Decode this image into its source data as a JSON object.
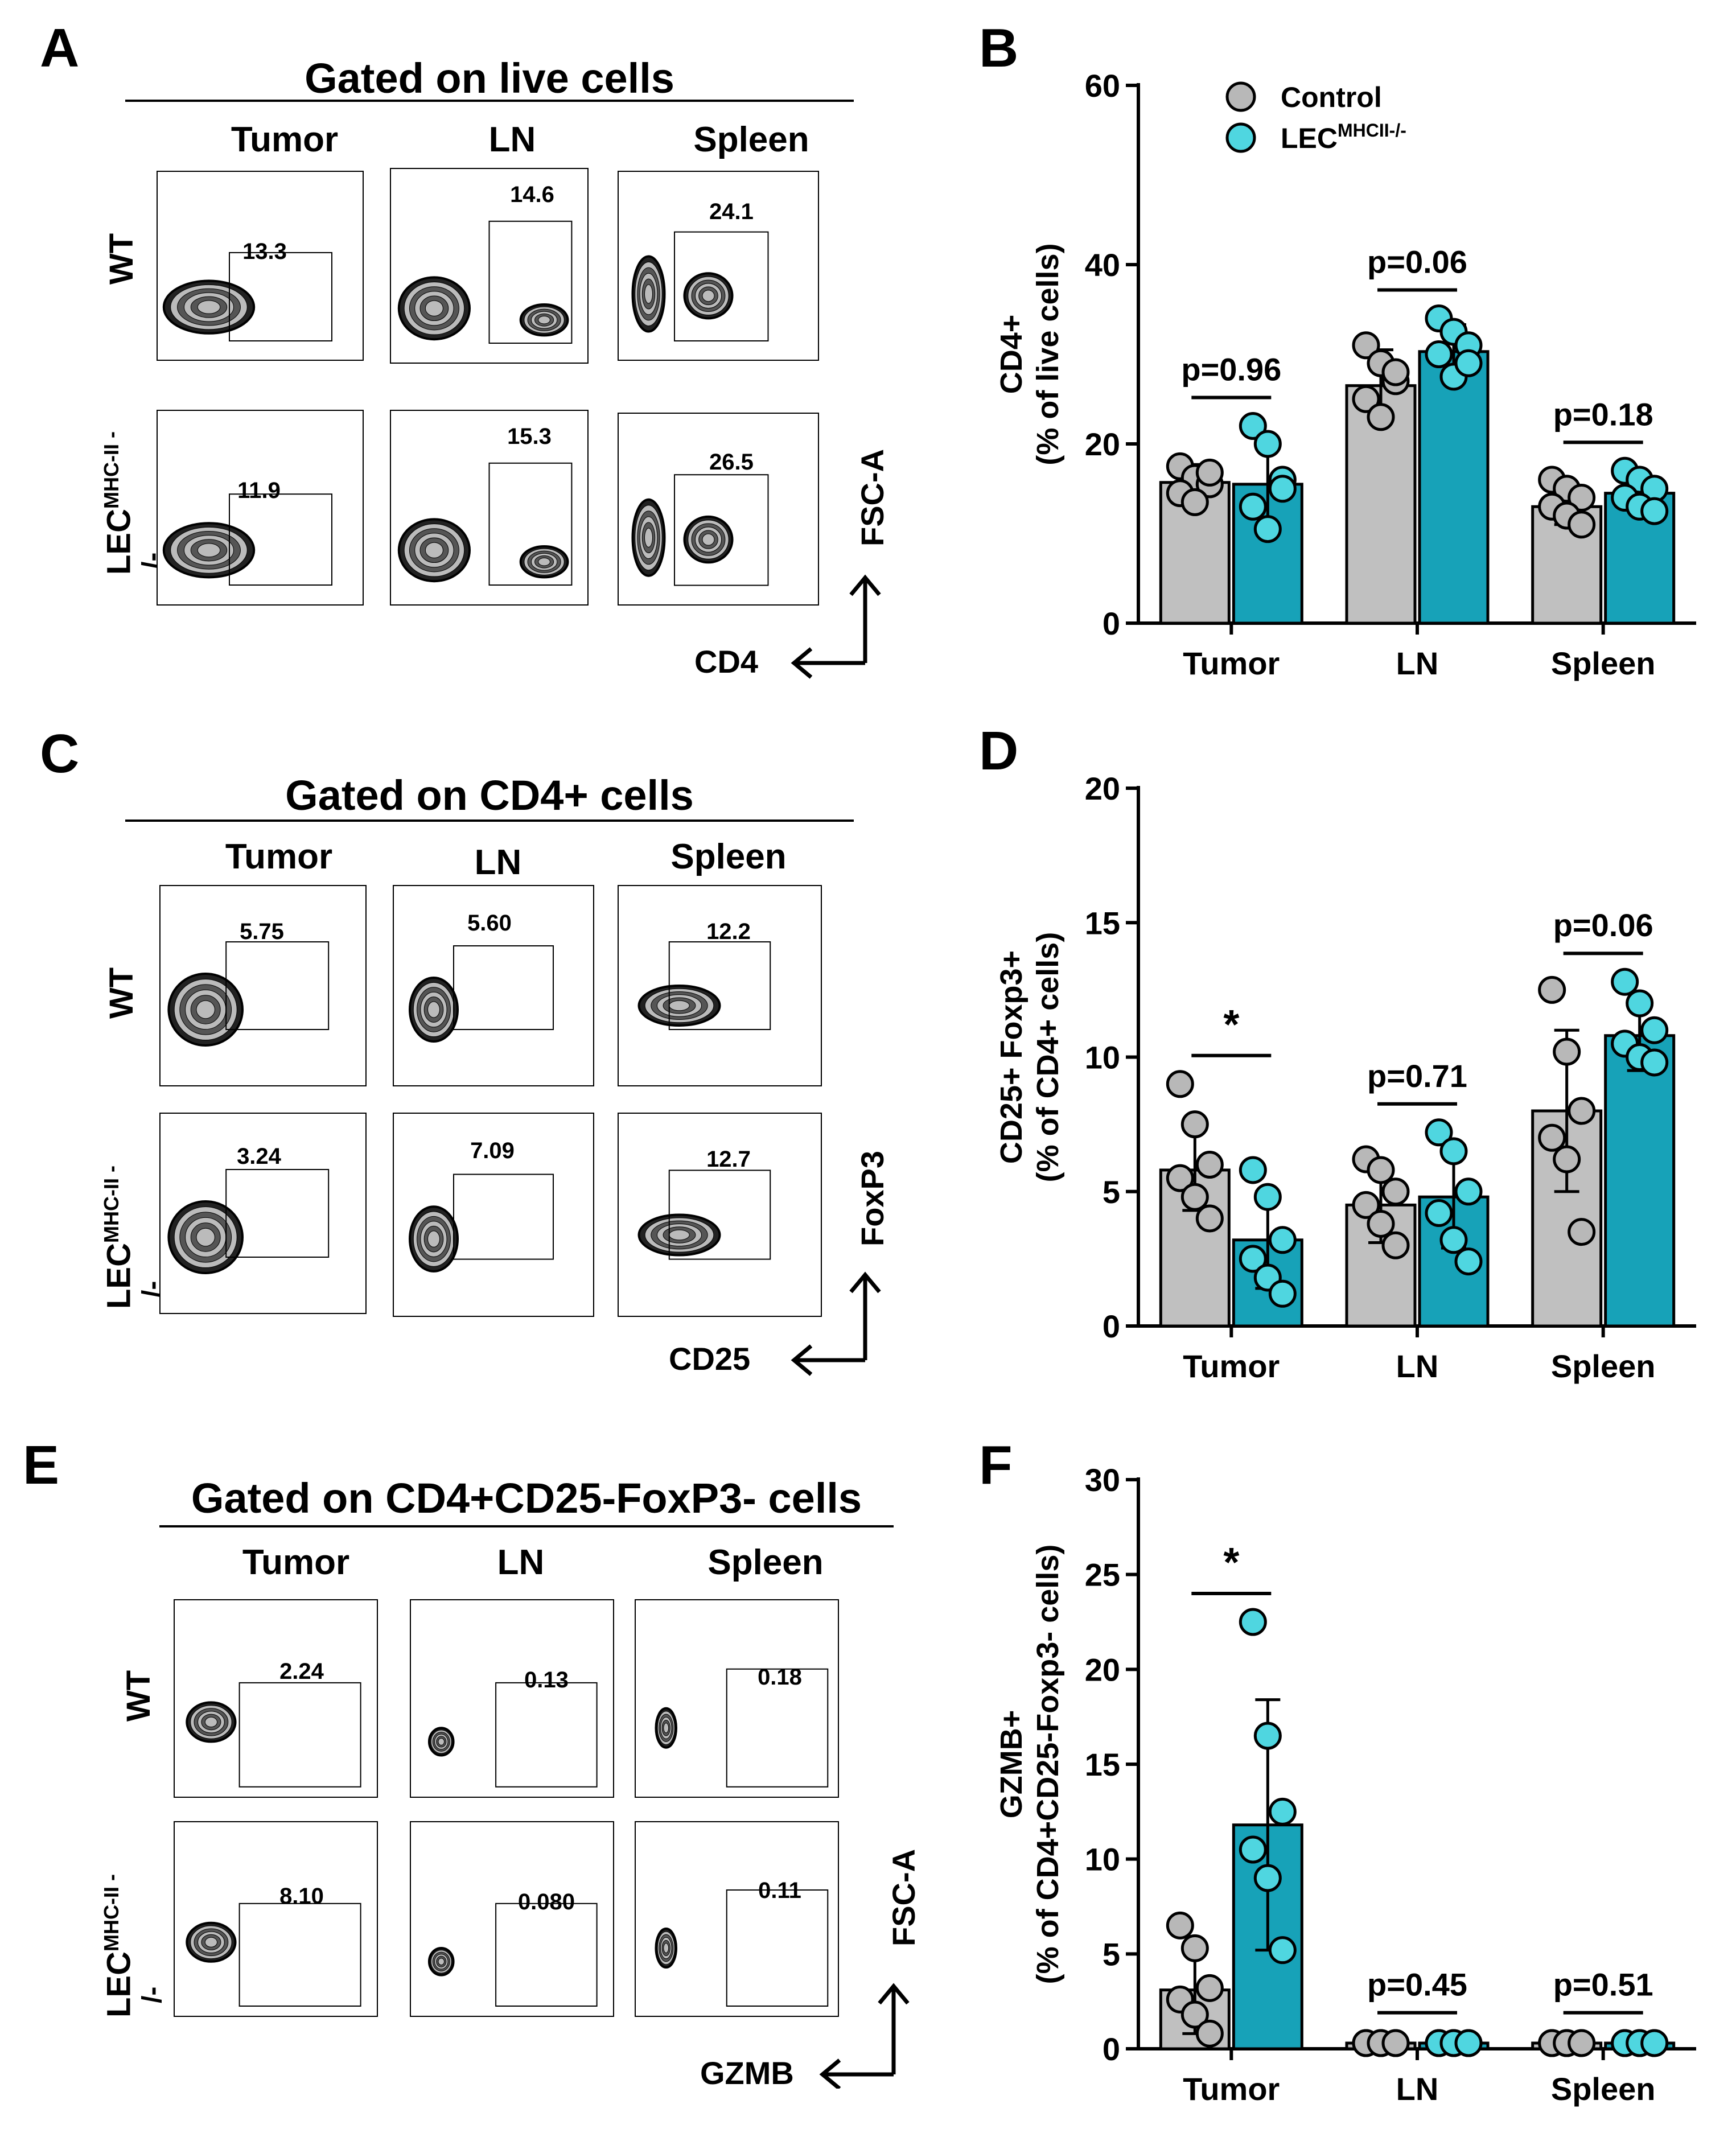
{
  "colors": {
    "control": "#c0c0c0",
    "ko_bar": "#17a2b8",
    "ko_dot": "#4fd6e0"
  },
  "panelA": {
    "letter": "A",
    "title": "Gated on live cells",
    "cols": [
      "Tumor",
      "LN",
      "Spleen"
    ],
    "rows": {
      "wt": "WT",
      "ko_main": "LEC",
      "ko_sup": "MHC-II -",
      "ko_tail": "/-"
    },
    "values": {
      "wt": [
        "13.3",
        "14.6",
        "24.1"
      ],
      "ko": [
        "11.9",
        "15.3",
        "26.5"
      ]
    },
    "x_axis": "CD4",
    "y_axis": "FSC-A"
  },
  "panelC": {
    "letter": "C",
    "title": "Gated on CD4+ cells",
    "cols": [
      "Tumor",
      "LN",
      "Spleen"
    ],
    "rows": {
      "wt": "WT",
      "ko_main": "LEC",
      "ko_sup": "MHC-II -",
      "ko_tail": "/-"
    },
    "values": {
      "wt": [
        "5.75",
        "5.60",
        "12.2"
      ],
      "ko": [
        "3.24",
        "7.09",
        "12.7"
      ]
    },
    "x_axis": "CD25",
    "y_axis": "FoxP3"
  },
  "panelE": {
    "letter": "E",
    "title": "Gated on CD4+CD25-FoxP3- cells",
    "cols": [
      "Tumor",
      "LN",
      "Spleen"
    ],
    "rows": {
      "wt": "WT",
      "ko_main": "LEC",
      "ko_sup": "MHC-II -",
      "ko_tail": "/-"
    },
    "values": {
      "wt": [
        "2.24",
        "0.13",
        "0.18"
      ],
      "ko": [
        "8.10",
        "0.080",
        "0.11"
      ]
    },
    "x_axis": "GZMB",
    "y_axis": "FSC-A"
  },
  "chart_data": [
    {
      "panel": "B",
      "type": "bar",
      "categories": [
        "Tumor",
        "LN",
        "Spleen"
      ],
      "ylabel_line1": "CD4+",
      "ylabel_line2": "(% of live cells)",
      "ylim": [
        0,
        60
      ],
      "yticks": [
        0,
        20,
        40,
        60
      ],
      "legend": {
        "control": "Control",
        "ko_main": "LEC",
        "ko_sup": "MHCII-/-"
      },
      "series": [
        {
          "name": "Control",
          "values": [
            15.7,
            26.5,
            13.0
          ],
          "sd": [
            2.0,
            4.0,
            2.0
          ],
          "points": [
            [
              17.5,
              16.2,
              15.5,
              14.5,
              13.5,
              16.8
            ],
            [
              31,
              29,
              27,
              25,
              23,
              28
            ],
            [
              16,
              15,
              14,
              13,
              12,
              11
            ]
          ]
        },
        {
          "name": "LEC MHCII-/-",
          "values": [
            15.5,
            30.3,
            14.5
          ],
          "sd": [
            5.0,
            3.0,
            1.5
          ],
          "points": [
            [
              22,
              20,
              16,
              13,
              10.5,
              15
            ],
            [
              34,
              32.5,
              31,
              30,
              27.5,
              29
            ],
            [
              17,
              16,
              15,
              14,
              13,
              12.5
            ]
          ]
        }
      ],
      "annotations": [
        "p=0.96",
        "p=0.06",
        "p=0.18"
      ]
    },
    {
      "panel": "D",
      "type": "bar",
      "categories": [
        "Tumor",
        "LN",
        "Spleen"
      ],
      "ylabel_line1": "CD25+ Foxp3+",
      "ylabel_line2": "(% of CD4+ cells)",
      "ylim": [
        0,
        20
      ],
      "yticks": [
        0,
        5,
        10,
        15,
        20
      ],
      "series": [
        {
          "name": "Control",
          "values": [
            5.8,
            4.5,
            8.0
          ],
          "sd": [
            1.5,
            1.4,
            3.0
          ],
          "points": [
            [
              9,
              7.5,
              6,
              5.5,
              4.8,
              4
            ],
            [
              6.2,
              5.8,
              5,
              4.5,
              3.8,
              3
            ],
            [
              12.5,
              10.2,
              8,
              7,
              6.2,
              3.5
            ]
          ]
        },
        {
          "name": "LEC MHCII-/-",
          "values": [
            3.2,
            4.8,
            10.8
          ],
          "sd": [
            1.8,
            1.9,
            1.3
          ],
          "points": [
            [
              5.8,
              4.8,
              3.2,
              2.5,
              1.8,
              1.2
            ],
            [
              7.2,
              6.5,
              5,
              4.2,
              3.2,
              2.4
            ],
            [
              12.8,
              12,
              11,
              10.5,
              10,
              9.8
            ]
          ]
        }
      ],
      "annotations": [
        "*",
        "p=0.71",
        "p=0.06"
      ]
    },
    {
      "panel": "F",
      "type": "bar",
      "categories": [
        "Tumor",
        "LN",
        "Spleen"
      ],
      "ylabel_line1": "GZMB+",
      "ylabel_line2": "(% of  CD4+CD25-Foxp3- cells)",
      "ylim": [
        0,
        30
      ],
      "yticks": [
        0,
        5,
        10,
        15,
        20,
        25,
        30
      ],
      "series": [
        {
          "name": "Control",
          "values": [
            3.1,
            0.3,
            0.3
          ],
          "sd": [
            2.3,
            0.1,
            0.1
          ],
          "points": [
            [
              6.5,
              5.3,
              3.2,
              2.6,
              1.8,
              0.8
            ],
            [
              0.3,
              0.3,
              0.3,
              0.3,
              0.3,
              0.3
            ],
            [
              0.3,
              0.3,
              0.3,
              0.3,
              0.3,
              0.3
            ]
          ]
        },
        {
          "name": "LEC MHCII-/-",
          "values": [
            11.8,
            0.3,
            0.3
          ],
          "sd": [
            6.6,
            0.1,
            0.1
          ],
          "points": [
            [
              22.5,
              16.5,
              12.5,
              10.5,
              9,
              5.2
            ],
            [
              0.3,
              0.3,
              0.3,
              0.3,
              0.3,
              0.3
            ],
            [
              0.3,
              0.3,
              0.3,
              0.3,
              0.3,
              0.3
            ]
          ]
        }
      ],
      "annotations": [
        "*",
        "p=0.45",
        "p=0.51"
      ]
    }
  ]
}
